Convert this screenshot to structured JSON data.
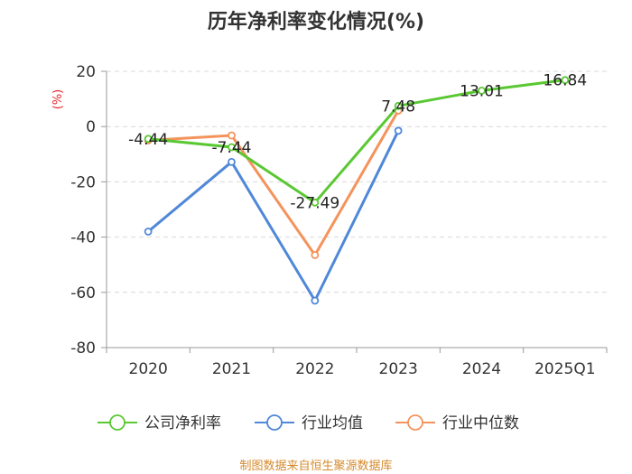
{
  "chart_data": {
    "type": "line",
    "title": "历年净利率变化情况(%)",
    "ylabel": "(%)",
    "categories": [
      "2020",
      "2021",
      "2022",
      "2023",
      "2024",
      "2025Q1"
    ],
    "ylim": [
      -80,
      20
    ],
    "yticks": [
      20,
      0,
      -20,
      -40,
      -60,
      -80
    ],
    "grid": true,
    "legend_position": "bottom",
    "series": [
      {
        "name": "公司净利率",
        "color": "#5ac832",
        "values": [
          -4.44,
          -7.44,
          -27.49,
          7.48,
          13.01,
          16.84
        ],
        "labels": [
          "-4.44",
          "-7.44",
          "-27.49",
          "7.48",
          "13.01",
          "16.84"
        ]
      },
      {
        "name": "行业均值",
        "color": "#4f87d9",
        "values": [
          -38,
          -12.8,
          -63,
          -1.5,
          null,
          null
        ]
      },
      {
        "name": "行业中位数",
        "color": "#f4935b",
        "values": [
          -5,
          -3.2,
          -46.5,
          5.8,
          null,
          null
        ]
      }
    ],
    "source": "制图数据来自恒生聚源数据库"
  }
}
